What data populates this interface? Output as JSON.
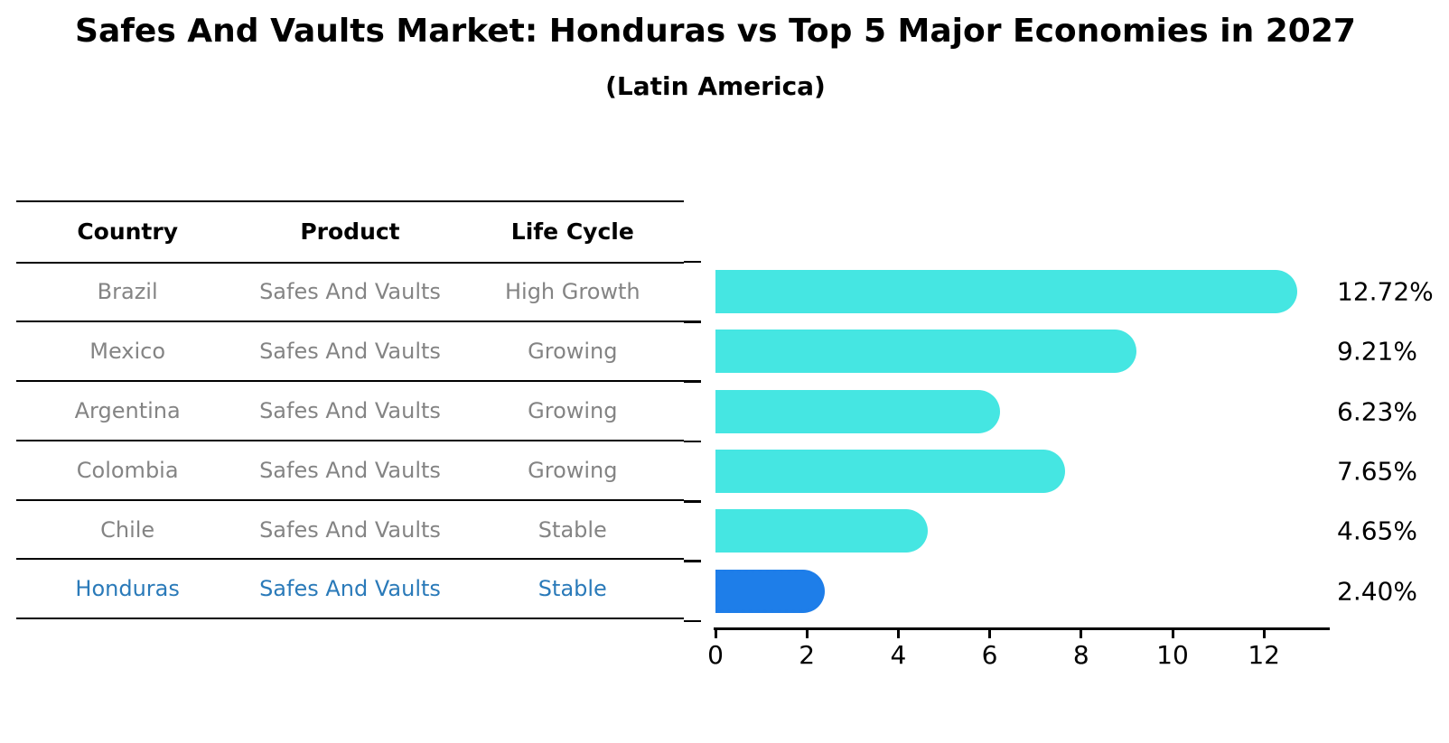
{
  "header": {
    "title": "Safes And Vaults Market: Honduras vs Top 5 Major Economies in 2027",
    "subtitle": "(Latin America)"
  },
  "table": {
    "headers": [
      "Country",
      "Product",
      "Life Cycle"
    ],
    "rows": [
      {
        "cells": [
          "Brazil",
          "Safes And Vaults",
          "High Growth"
        ],
        "highlighted": false
      },
      {
        "cells": [
          "Mexico",
          "Safes And Vaults",
          "Growing"
        ],
        "highlighted": false
      },
      {
        "cells": [
          "Argentina",
          "Safes And Vaults",
          "Growing"
        ],
        "highlighted": false
      },
      {
        "cells": [
          "Colombia",
          "Safes And Vaults",
          "Growing"
        ],
        "highlighted": false
      },
      {
        "cells": [
          "Chile",
          "Safes And Vaults",
          "Stable"
        ],
        "highlighted": false
      },
      {
        "cells": [
          "Honduras",
          "Safes And Vaults",
          "Stable"
        ],
        "highlighted": true
      }
    ]
  },
  "chart_data": {
    "type": "bar",
    "orientation": "horizontal",
    "title": "Safes And Vaults Market: Honduras vs Top 5 Major Economies in 2027",
    "subtitle": "(Latin America)",
    "categories": [
      "Brazil",
      "Mexico",
      "Argentina",
      "Colombia",
      "Chile",
      "Honduras"
    ],
    "values": [
      12.72,
      9.21,
      6.23,
      7.65,
      4.65,
      2.4
    ],
    "value_labels": [
      "12.72%",
      "9.21%",
      "6.23%",
      "7.65%",
      "4.65%",
      "2.40%"
    ],
    "xlim": [
      0,
      13.4
    ],
    "xticks": [
      0,
      2,
      4,
      6,
      8,
      10,
      12
    ],
    "grid": false,
    "legend": false,
    "bar_color": "#45E6E2",
    "highlight_color": "#1E7EE9",
    "highlight_index": 5,
    "text_color_default": "#848484",
    "text_color_highlight": "#2A7AB9"
  }
}
